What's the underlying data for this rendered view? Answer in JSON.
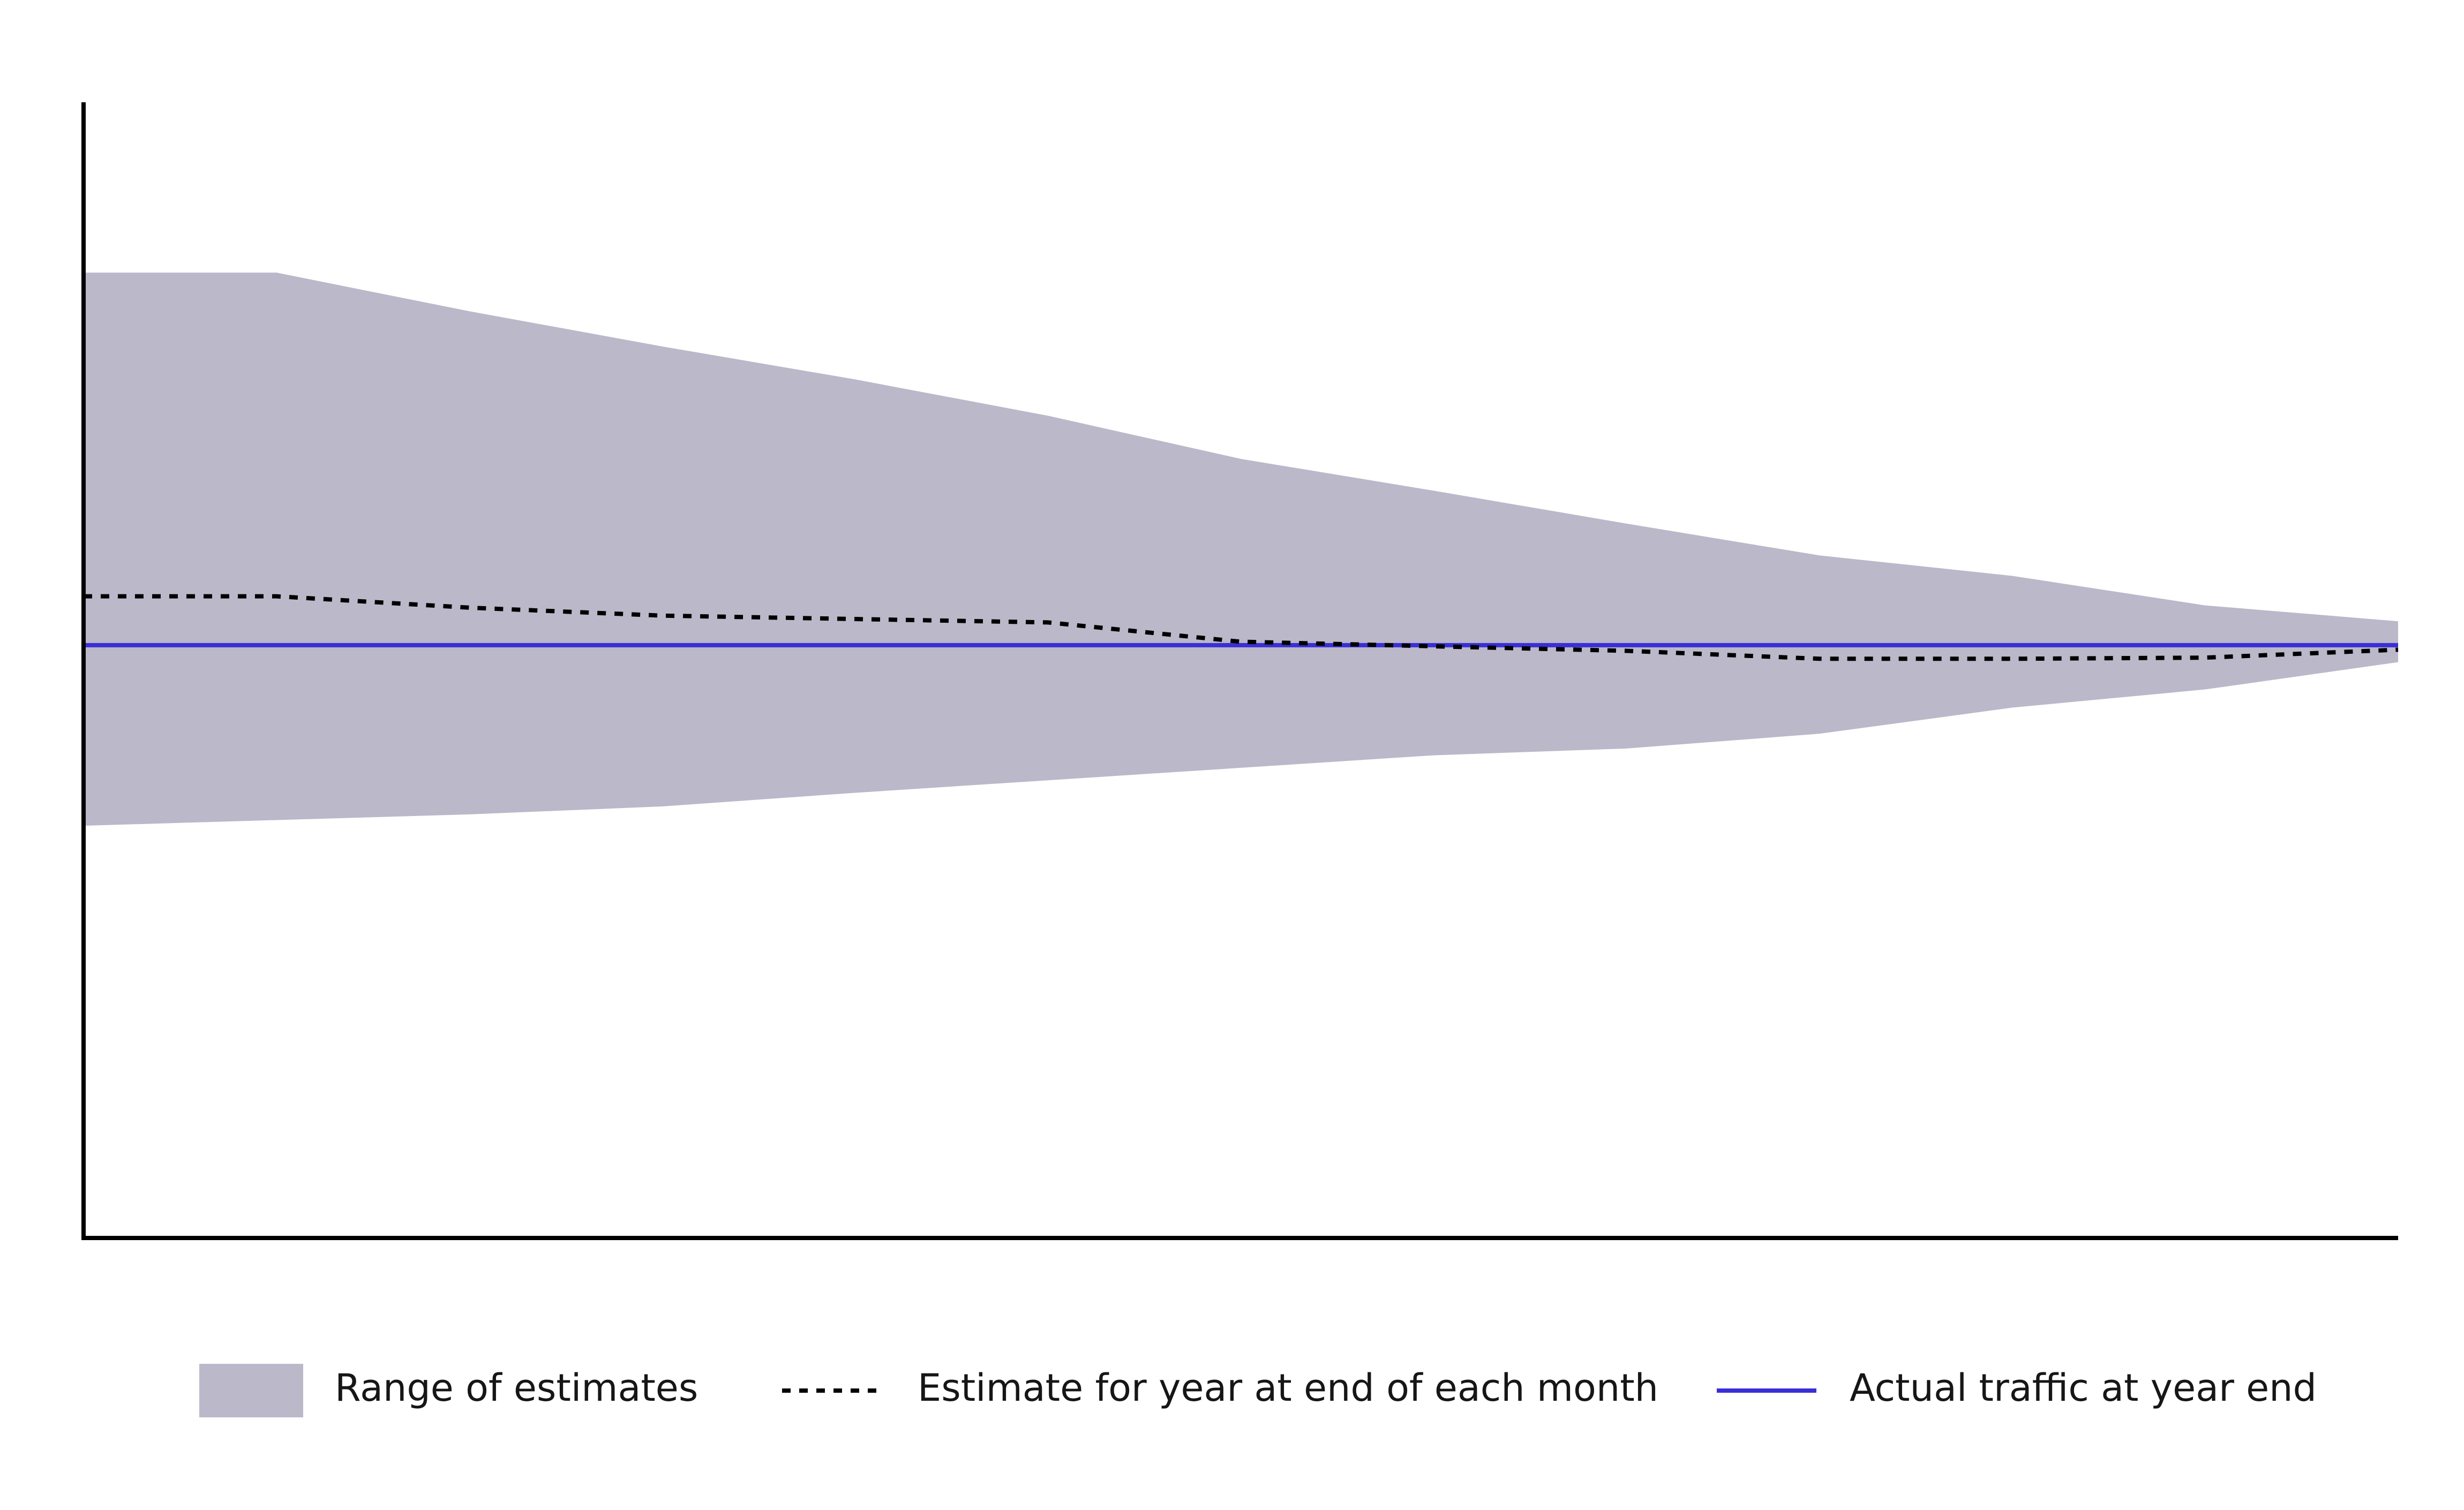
{
  "chart_data": {
    "type": "line",
    "x": [
      0,
      1,
      2,
      3,
      4,
      5,
      6,
      7,
      8,
      9,
      10,
      11,
      12
    ],
    "xlim": [
      0,
      12
    ],
    "ylim": [
      0,
      100
    ],
    "band": {
      "name": "Range of estimates",
      "color": "#bab8c9",
      "upper": [
        85.0,
        85.0,
        81.6,
        78.5,
        75.6,
        72.4,
        68.6,
        65.8,
        62.9,
        60.1,
        58.3,
        55.7,
        54.3
      ],
      "lower": [
        36.3,
        36.8,
        37.3,
        38.0,
        39.2,
        40.3,
        41.4,
        42.5,
        43.1,
        44.4,
        46.7,
        48.3,
        50.7
      ]
    },
    "series": [
      {
        "name": "Estimate for year at end of each month",
        "color": "#000000",
        "style": "dashed",
        "values": [
          56.5,
          56.5,
          55.5,
          54.8,
          54.5,
          54.2,
          52.5,
          52.1,
          51.7,
          51.0,
          51.0,
          51.1,
          51.8
        ]
      },
      {
        "name": "Actual traffic at year end",
        "color": "#3a2fd6",
        "style": "solid",
        "values": [
          52.2,
          52.2,
          52.2,
          52.2,
          52.2,
          52.2,
          52.2,
          52.2,
          52.2,
          52.2,
          52.2,
          52.2,
          52.2
        ]
      }
    ]
  }
}
